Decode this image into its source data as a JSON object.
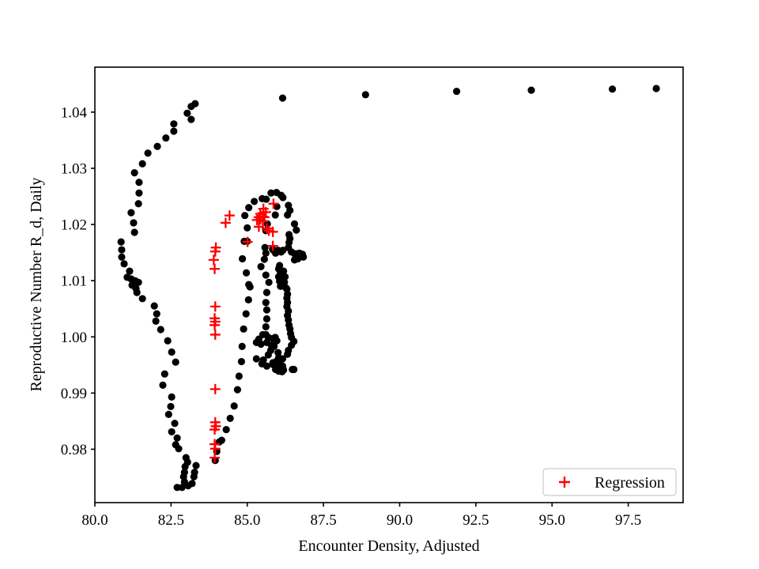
{
  "chart_data": {
    "type": "scatter",
    "title": "",
    "xlabel": "Encounter Density, Adjusted",
    "ylabel": "Reproductive Number R_d, Daily",
    "xlim": [
      80.0,
      99.3
    ],
    "ylim": [
      0.9705,
      1.048
    ],
    "xticks": [
      80.0,
      82.5,
      85.0,
      87.5,
      90.0,
      92.5,
      95.0,
      97.5
    ],
    "xtick_labels": [
      "80.0",
      "82.5",
      "85.0",
      "87.5",
      "90.0",
      "92.5",
      "95.0",
      "97.5"
    ],
    "yticks": [
      0.98,
      0.99,
      1.0,
      1.01,
      1.02,
      1.03,
      1.04
    ],
    "ytick_labels": [
      "0.98",
      "0.99",
      "1.00",
      "1.01",
      "1.02",
      "1.03",
      "1.04"
    ],
    "grid": false,
    "legend": [
      "Regression"
    ],
    "legend_position": "lower right",
    "colors": {
      "points": "#000000",
      "regression": "#ff0000",
      "spine": "#000000",
      "legend_border": "#cccccc"
    },
    "series": [
      {
        "name": "",
        "marker": "circle",
        "color": "#000000",
        "points": [
          [
            98.42,
            1.0442
          ],
          [
            96.98,
            1.0441
          ],
          [
            94.32,
            1.0439
          ],
          [
            91.87,
            1.0437
          ],
          [
            88.88,
            1.0431
          ],
          [
            86.16,
            1.0425
          ],
          [
            83.29,
            1.0415
          ],
          [
            83.16,
            1.041
          ],
          [
            83.03,
            1.0398
          ],
          [
            83.16,
            1.0387
          ],
          [
            82.59,
            1.0379
          ],
          [
            82.59,
            1.0366
          ],
          [
            82.33,
            1.0354
          ],
          [
            82.05,
            1.0339
          ],
          [
            81.74,
            1.0327
          ],
          [
            81.56,
            1.0308
          ],
          [
            81.3,
            1.0292
          ],
          [
            81.45,
            1.0275
          ],
          [
            81.45,
            1.0256
          ],
          [
            81.43,
            1.0237
          ],
          [
            81.19,
            1.0221
          ],
          [
            81.27,
            1.0203
          ],
          [
            81.3,
            1.0186
          ],
          [
            80.86,
            1.0169
          ],
          [
            80.88,
            1.0155
          ],
          [
            80.88,
            1.0142
          ],
          [
            80.96,
            1.013
          ],
          [
            81.14,
            1.0117
          ],
          [
            81.06,
            1.0106
          ],
          [
            81.19,
            1.0103
          ],
          [
            81.32,
            1.01
          ],
          [
            81.43,
            1.0097
          ],
          [
            81.22,
            1.0092
          ],
          [
            81.35,
            1.0086
          ],
          [
            81.38,
            1.0079
          ],
          [
            81.56,
            1.0068
          ],
          [
            81.95,
            1.0055
          ],
          [
            82.03,
            1.0041
          ],
          [
            82.0,
            1.0028
          ],
          [
            82.16,
            1.0013
          ],
          [
            82.39,
            0.9993
          ],
          [
            82.52,
            0.9973
          ],
          [
            82.65,
            0.9955
          ],
          [
            82.29,
            0.9934
          ],
          [
            82.23,
            0.9914
          ],
          [
            82.52,
            0.9893
          ],
          [
            82.49,
            0.9876
          ],
          [
            82.42,
            0.9862
          ],
          [
            82.62,
            0.9846
          ],
          [
            82.52,
            0.9831
          ],
          [
            82.7,
            0.982
          ],
          [
            82.65,
            0.9808
          ],
          [
            82.75,
            0.9801
          ],
          [
            82.99,
            0.9785
          ],
          [
            83.04,
            0.9777
          ],
          [
            82.96,
            0.9769
          ],
          [
            82.94,
            0.9759
          ],
          [
            82.91,
            0.9751
          ],
          [
            82.94,
            0.9742
          ],
          [
            82.86,
            0.9732
          ],
          [
            82.7,
            0.9732
          ],
          [
            83.06,
            0.9735
          ],
          [
            83.19,
            0.9739
          ],
          [
            83.25,
            0.9751
          ],
          [
            83.27,
            0.9759
          ],
          [
            83.32,
            0.9771
          ],
          [
            83.95,
            0.978
          ],
          [
            84.0,
            0.9796
          ],
          [
            84.08,
            0.9813
          ],
          [
            84.16,
            0.9816
          ],
          [
            84.31,
            0.9835
          ],
          [
            84.44,
            0.9855
          ],
          [
            84.57,
            0.9877
          ],
          [
            84.68,
            0.9906
          ],
          [
            84.73,
            0.993
          ],
          [
            84.81,
            0.9956
          ],
          [
            84.83,
            0.9983
          ],
          [
            84.88,
            1.0014
          ],
          [
            84.96,
            1.0041
          ],
          [
            85.04,
            1.0066
          ],
          [
            85.09,
            1.0089
          ],
          [
            85.05,
            1.0093
          ],
          [
            84.97,
            1.0114
          ],
          [
            84.84,
            1.0139
          ],
          [
            84.9,
            1.017
          ],
          [
            85.0,
            1.017
          ],
          [
            85.0,
            1.0194
          ],
          [
            84.92,
            1.0216
          ],
          [
            85.05,
            1.023
          ],
          [
            85.23,
            1.0241
          ],
          [
            85.49,
            1.0246
          ],
          [
            85.62,
            1.0245
          ],
          [
            85.78,
            1.0256
          ],
          [
            85.96,
            1.0257
          ],
          [
            86.11,
            1.0252
          ],
          [
            86.17,
            1.0248
          ],
          [
            85.97,
            1.0232
          ],
          [
            86.35,
            1.0234
          ],
          [
            86.4,
            1.0225
          ],
          [
            86.32,
            1.0217
          ],
          [
            86.55,
            1.0201
          ],
          [
            86.61,
            1.019
          ],
          [
            86.37,
            1.0182
          ],
          [
            86.4,
            1.0175
          ],
          [
            86.37,
            1.0168
          ],
          [
            86.35,
            1.0159
          ],
          [
            86.45,
            1.0151
          ],
          [
            86.55,
            1.0148
          ],
          [
            86.6,
            1.0148
          ],
          [
            86.71,
            1.0149
          ],
          [
            86.81,
            1.0147
          ],
          [
            86.84,
            1.0142
          ],
          [
            86.76,
            1.0144
          ],
          [
            86.66,
            1.0139
          ],
          [
            86.55,
            1.0137
          ],
          [
            85.83,
            1.0156
          ],
          [
            85.86,
            1.0154
          ],
          [
            85.93,
            1.0151
          ],
          [
            86.01,
            1.0154
          ],
          [
            86.11,
            1.0151
          ],
          [
            86.17,
            1.0154
          ],
          [
            85.93,
            1.0149
          ],
          [
            86.06,
            1.0127
          ],
          [
            86.03,
            1.0121
          ],
          [
            86.09,
            1.0114
          ],
          [
            86.03,
            1.0107
          ],
          [
            86.06,
            1.0099
          ],
          [
            86.09,
            1.009
          ],
          [
            86.19,
            1.0117
          ],
          [
            86.24,
            1.0107
          ],
          [
            86.22,
            1.0097
          ],
          [
            86.27,
            1.0087
          ],
          [
            86.3,
            1.0085
          ],
          [
            86.32,
            1.0076
          ],
          [
            86.3,
            1.0069
          ],
          [
            86.32,
            1.0061
          ],
          [
            86.3,
            1.0054
          ],
          [
            86.35,
            1.0046
          ],
          [
            86.32,
            1.0038
          ],
          [
            86.35,
            1.003
          ],
          [
            86.37,
            1.0021
          ],
          [
            86.4,
            1.0014
          ],
          [
            86.42,
            1.0006
          ],
          [
            86.45,
            0.9999
          ],
          [
            86.53,
            0.9992
          ],
          [
            86.45,
            0.9985
          ],
          [
            86.35,
            0.9976
          ],
          [
            86.32,
            0.9969
          ],
          [
            85.92,
            1.0217
          ],
          [
            85.66,
            1.0201
          ],
          [
            85.61,
            1.0189
          ],
          [
            85.58,
            1.0159
          ],
          [
            85.61,
            1.0149
          ],
          [
            85.56,
            1.0138
          ],
          [
            85.45,
            1.0125
          ],
          [
            85.61,
            1.011
          ],
          [
            85.71,
            1.0097
          ],
          [
            85.64,
            1.0079
          ],
          [
            85.61,
            1.0061
          ],
          [
            85.64,
            1.0048
          ],
          [
            85.64,
            1.0032
          ],
          [
            85.61,
            1.0018
          ],
          [
            85.51,
            1.0004
          ],
          [
            85.61,
            1.0004
          ],
          [
            85.38,
            0.9996
          ],
          [
            85.3,
            0.999
          ],
          [
            85.45,
            0.9987
          ],
          [
            85.64,
            0.999
          ],
          [
            85.69,
            0.9999
          ],
          [
            85.84,
            0.9997
          ],
          [
            85.92,
            0.9999
          ],
          [
            85.97,
            0.9993
          ],
          [
            85.79,
            0.9985
          ],
          [
            85.88,
            0.9983
          ],
          [
            85.77,
            0.9976
          ],
          [
            86.01,
            0.9972
          ],
          [
            85.69,
            0.9968
          ],
          [
            86.03,
            0.9963
          ],
          [
            86.16,
            0.9961
          ],
          [
            85.53,
            0.9959
          ],
          [
            85.97,
            0.9957
          ],
          [
            86.06,
            0.9952
          ],
          [
            85.48,
            0.9952
          ],
          [
            85.84,
            0.9951
          ],
          [
            85.64,
            0.9948
          ],
          [
            85.84,
            0.9954
          ],
          [
            85.93,
            0.9951
          ],
          [
            86.03,
            0.9948
          ],
          [
            86.16,
            0.9948
          ],
          [
            86.09,
            0.9945
          ],
          [
            85.93,
            0.9942
          ],
          [
            86.03,
            0.9939
          ],
          [
            86.14,
            0.9938
          ],
          [
            86.19,
            0.9941
          ],
          [
            86.48,
            0.9942
          ],
          [
            86.53,
            0.9942
          ],
          [
            85.3,
            0.9961
          ]
        ]
      },
      {
        "name": "Regression",
        "marker": "plus",
        "color": "#ff0000",
        "points": [
          [
            83.93,
            0.9785
          ],
          [
            83.95,
            0.9801
          ],
          [
            83.93,
            0.9809
          ],
          [
            83.93,
            0.9835
          ],
          [
            83.97,
            0.9841
          ],
          [
            83.95,
            0.9848
          ],
          [
            83.95,
            0.9907
          ],
          [
            83.95,
            1.0004
          ],
          [
            83.93,
            1.0021
          ],
          [
            83.95,
            1.0027
          ],
          [
            83.93,
            1.0033
          ],
          [
            83.95,
            1.0054
          ],
          [
            83.93,
            1.0121
          ],
          [
            83.9,
            1.0137
          ],
          [
            83.95,
            1.0152
          ],
          [
            83.97,
            1.0159
          ],
          [
            84.29,
            1.0203
          ],
          [
            84.42,
            1.0216
          ],
          [
            85.86,
            1.0237
          ],
          [
            85.53,
            1.0228
          ],
          [
            85.61,
            1.0222
          ],
          [
            85.43,
            1.0219
          ],
          [
            85.51,
            1.0214
          ],
          [
            85.38,
            1.0213
          ],
          [
            85.56,
            1.0213
          ],
          [
            85.43,
            1.0209
          ],
          [
            85.32,
            1.0208
          ],
          [
            85.51,
            1.0206
          ],
          [
            85.38,
            1.0196
          ],
          [
            85.64,
            1.0193
          ],
          [
            85.71,
            1.0189
          ],
          [
            85.84,
            1.0187
          ],
          [
            85.01,
            1.0169
          ],
          [
            85.84,
            1.0162
          ]
        ]
      }
    ]
  }
}
